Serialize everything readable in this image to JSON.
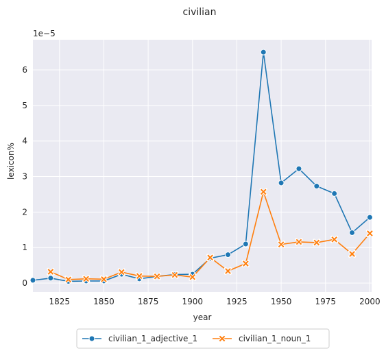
{
  "chart_data": {
    "type": "line",
    "title": "civilian",
    "xlabel": "year",
    "ylabel": "lexicon%",
    "y_scale_label": "1e−5",
    "xlim": [
      1810,
      2001
    ],
    "ylim": [
      -0.25,
      6.85
    ],
    "xticks": [
      1825,
      1850,
      1875,
      1900,
      1925,
      1950,
      1975,
      2000
    ],
    "yticks": [
      0,
      1,
      2,
      3,
      4,
      5,
      6
    ],
    "grid": true,
    "legend_position": "bottom-center",
    "series": [
      {
        "name": "civilian_1_adjective_1",
        "color": "#1f77b4",
        "marker": "circle",
        "x": [
          1810,
          1820,
          1830,
          1840,
          1850,
          1860,
          1870,
          1880,
          1890,
          1900,
          1910,
          1920,
          1930,
          1940,
          1950,
          1960,
          1970,
          1980,
          1990,
          2000
        ],
        "y": [
          0.08,
          0.14,
          0.05,
          0.06,
          0.06,
          0.25,
          0.12,
          0.19,
          0.24,
          0.25,
          0.7,
          0.8,
          1.1,
          6.5,
          2.82,
          3.22,
          2.73,
          2.52,
          1.42,
          1.85
        ]
      },
      {
        "name": "civilian_1_noun_1",
        "color": "#ff7f0e",
        "marker": "x",
        "x": [
          1820,
          1830,
          1840,
          1850,
          1860,
          1870,
          1880,
          1890,
          1900,
          1910,
          1920,
          1930,
          1940,
          1950,
          1960,
          1970,
          1980,
          1990,
          2000
        ],
        "y": [
          0.32,
          0.1,
          0.12,
          0.11,
          0.31,
          0.2,
          0.19,
          0.23,
          0.17,
          0.72,
          0.34,
          0.55,
          2.57,
          1.09,
          1.16,
          1.14,
          1.23,
          0.82,
          1.4
        ]
      }
    ]
  }
}
